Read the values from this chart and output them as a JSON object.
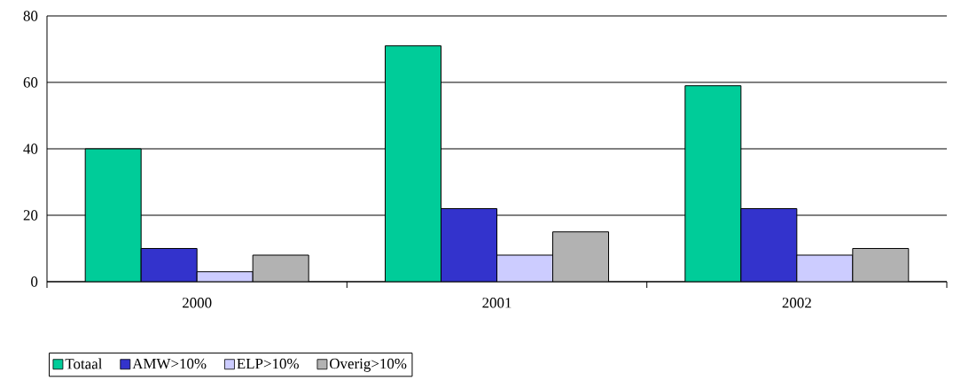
{
  "chart_data": {
    "type": "bar",
    "categories": [
      "2000",
      "2001",
      "2002"
    ],
    "series": [
      {
        "name": "Totaal",
        "color": "#00cc99",
        "values": [
          40,
          71,
          59
        ]
      },
      {
        "name": "AMW>10%",
        "color": "#3333cc",
        "values": [
          10,
          22,
          22
        ]
      },
      {
        "name": "ELP>10%",
        "color": "#ccccff",
        "values": [
          3,
          8,
          8
        ]
      },
      {
        "name": "Overig>10%",
        "color": "#b2b2b2",
        "values": [
          8,
          15,
          10
        ]
      }
    ],
    "ylim": [
      0,
      80
    ],
    "yticks": [
      0,
      20,
      40,
      60,
      80
    ],
    "grid": "y",
    "legend": "bottom left"
  }
}
